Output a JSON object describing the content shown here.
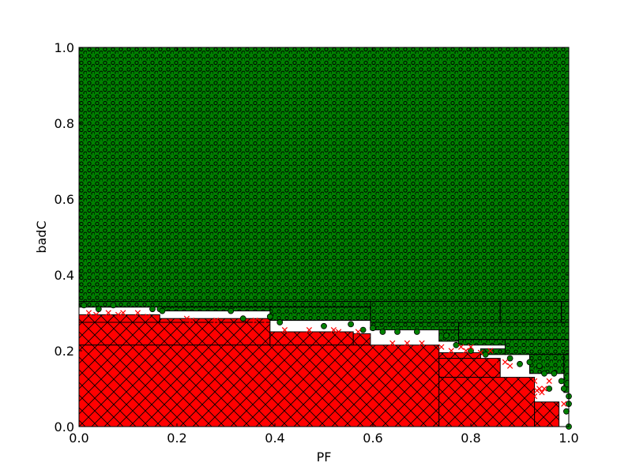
{
  "chart_data": {
    "type": "scatter",
    "title": "",
    "xlabel": "PF",
    "ylabel": "badC",
    "xlim": [
      0.0,
      1.0
    ],
    "ylim": [
      0.0,
      1.0
    ],
    "xticks": [
      "0.0",
      "0.2",
      "0.4",
      "0.6",
      "0.8",
      "1.0"
    ],
    "yticks": [
      "0.0",
      "0.2",
      "0.4",
      "0.6",
      "0.8",
      "1.0"
    ],
    "grid": false,
    "legend": "none",
    "colors": {
      "class_1": "#008000",
      "class_0": "#ff0000",
      "empty": "#ffffff",
      "edge": "#000000"
    },
    "regions": [
      {
        "x0": 0.0,
        "x1": 1.0,
        "y0": 0.33,
        "y1": 1.0,
        "class": "green"
      },
      {
        "x0": 0.0,
        "x1": 1.0,
        "y0": 0.315,
        "y1": 0.33,
        "class": "green"
      },
      {
        "x0": 0.165,
        "x1": 0.39,
        "y0": 0.305,
        "y1": 0.315,
        "class": "green"
      },
      {
        "x0": 0.39,
        "x1": 0.595,
        "y0": 0.28,
        "y1": 0.315,
        "class": "green"
      },
      {
        "x0": 0.595,
        "x1": 0.86,
        "y0": 0.275,
        "y1": 0.33,
        "class": "green"
      },
      {
        "x0": 0.86,
        "x1": 0.985,
        "y0": 0.275,
        "y1": 0.33,
        "class": "green"
      },
      {
        "x0": 0.985,
        "x1": 1.0,
        "y0": 0.275,
        "y1": 0.33,
        "class": "green"
      },
      {
        "x0": 0.595,
        "x1": 0.775,
        "y0": 0.255,
        "y1": 0.275,
        "class": "green"
      },
      {
        "x0": 0.775,
        "x1": 1.0,
        "y0": 0.23,
        "y1": 0.275,
        "class": "green"
      },
      {
        "x0": 0.735,
        "x1": 0.775,
        "y0": 0.225,
        "y1": 0.255,
        "class": "green"
      },
      {
        "x0": 0.775,
        "x1": 0.87,
        "y0": 0.215,
        "y1": 0.23,
        "class": "green"
      },
      {
        "x0": 0.87,
        "x1": 1.0,
        "y0": 0.19,
        "y1": 0.23,
        "class": "green"
      },
      {
        "x0": 0.82,
        "x1": 0.87,
        "y0": 0.19,
        "y1": 0.205,
        "class": "green"
      },
      {
        "x0": 0.92,
        "x1": 0.99,
        "y0": 0.14,
        "y1": 0.19,
        "class": "green"
      },
      {
        "x0": 0.99,
        "x1": 1.0,
        "y0": 0.09,
        "y1": 0.19,
        "class": "green"
      },
      {
        "x0": 0.0,
        "x1": 0.165,
        "y0": 0.275,
        "y1": 0.295,
        "class": "red"
      },
      {
        "x0": 0.165,
        "x1": 0.39,
        "y0": 0.275,
        "y1": 0.285,
        "class": "red"
      },
      {
        "x0": 0.0,
        "x1": 0.39,
        "y0": 0.215,
        "y1": 0.275,
        "class": "red"
      },
      {
        "x0": 0.39,
        "x1": 0.56,
        "y0": 0.215,
        "y1": 0.25,
        "class": "red"
      },
      {
        "x0": 0.56,
        "x1": 0.595,
        "y0": 0.215,
        "y1": 0.245,
        "class": "red"
      },
      {
        "x0": 0.0,
        "x1": 0.735,
        "y0": 0.0,
        "y1": 0.215,
        "class": "red"
      },
      {
        "x0": 0.735,
        "x1": 0.82,
        "y0": 0.18,
        "y1": 0.195,
        "class": "red"
      },
      {
        "x0": 0.735,
        "x1": 0.86,
        "y0": 0.13,
        "y1": 0.18,
        "class": "red"
      },
      {
        "x0": 0.735,
        "x1": 0.93,
        "y0": 0.0,
        "y1": 0.13,
        "class": "red"
      },
      {
        "x0": 0.93,
        "x1": 0.98,
        "y0": 0.0,
        "y1": 0.065,
        "class": "red"
      }
    ],
    "series": [
      {
        "marker": "circle",
        "color": "#008000",
        "points": [
          [
            0.01,
            0.32
          ],
          [
            0.04,
            0.31
          ],
          [
            0.07,
            0.32
          ],
          [
            0.15,
            0.31
          ],
          [
            0.165,
            0.31
          ],
          [
            0.17,
            0.305
          ],
          [
            0.31,
            0.305
          ],
          [
            0.335,
            0.285
          ],
          [
            0.39,
            0.29
          ],
          [
            0.41,
            0.275
          ],
          [
            0.5,
            0.265
          ],
          [
            0.555,
            0.27
          ],
          [
            0.58,
            0.255
          ],
          [
            0.6,
            0.26
          ],
          [
            0.62,
            0.25
          ],
          [
            0.65,
            0.25
          ],
          [
            0.69,
            0.25
          ],
          [
            0.75,
            0.24
          ],
          [
            0.77,
            0.215
          ],
          [
            0.8,
            0.2
          ],
          [
            0.83,
            0.19
          ],
          [
            0.88,
            0.18
          ],
          [
            0.9,
            0.165
          ],
          [
            0.92,
            0.17
          ],
          [
            0.94,
            0.16
          ],
          [
            0.95,
            0.14
          ],
          [
            0.97,
            0.14
          ],
          [
            0.985,
            0.12
          ],
          [
            0.99,
            0.1
          ],
          [
            1.0,
            0.08
          ],
          [
            1.0,
            0.06
          ],
          [
            0.995,
            0.04
          ],
          [
            1.0,
            0.0
          ],
          [
            0.96,
            0.1
          ]
        ]
      },
      {
        "marker": "x",
        "color": "#ff0000",
        "points": [
          [
            0.02,
            0.3
          ],
          [
            0.035,
            0.295
          ],
          [
            0.06,
            0.3
          ],
          [
            0.08,
            0.295
          ],
          [
            0.09,
            0.3
          ],
          [
            0.12,
            0.3
          ],
          [
            0.14,
            0.29
          ],
          [
            0.22,
            0.285
          ],
          [
            0.23,
            0.28
          ],
          [
            0.28,
            0.28
          ],
          [
            0.36,
            0.28
          ],
          [
            0.38,
            0.275
          ],
          [
            0.42,
            0.255
          ],
          [
            0.47,
            0.255
          ],
          [
            0.52,
            0.255
          ],
          [
            0.53,
            0.25
          ],
          [
            0.57,
            0.25
          ],
          [
            0.64,
            0.22
          ],
          [
            0.67,
            0.22
          ],
          [
            0.7,
            0.22
          ],
          [
            0.74,
            0.21
          ],
          [
            0.76,
            0.2
          ],
          [
            0.78,
            0.21
          ],
          [
            0.79,
            0.2
          ],
          [
            0.8,
            0.21
          ],
          [
            0.82,
            0.195
          ],
          [
            0.84,
            0.2
          ],
          [
            0.85,
            0.17
          ],
          [
            0.87,
            0.17
          ],
          [
            0.88,
            0.16
          ],
          [
            0.93,
            0.12
          ],
          [
            0.94,
            0.1
          ],
          [
            0.93,
            0.08
          ],
          [
            0.95,
            0.1
          ],
          [
            0.935,
            0.095
          ],
          [
            0.945,
            0.09
          ],
          [
            0.96,
            0.12
          ],
          [
            0.99,
            0.06
          ]
        ]
      }
    ]
  }
}
